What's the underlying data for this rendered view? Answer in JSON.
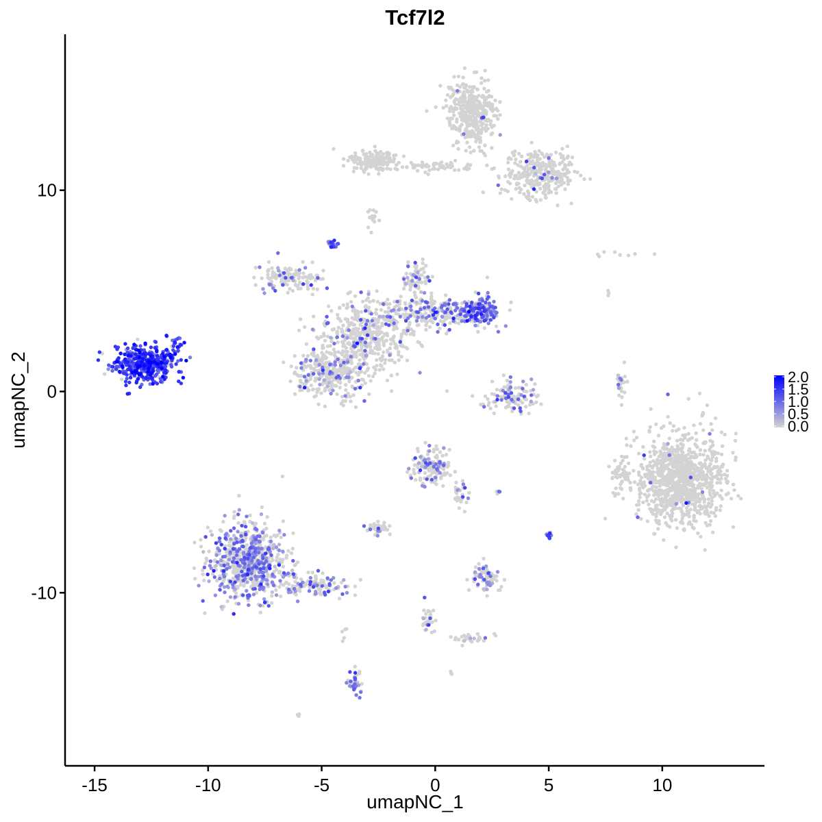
{
  "chart_data": {
    "type": "scatter",
    "title": "Tcf7l2",
    "xlabel": "umapNC_1",
    "ylabel": "umapNC_2",
    "xlim": [
      -16.3,
      14.5
    ],
    "ylim": [
      -18.6,
      17.75
    ],
    "x_ticks": [
      -15,
      -10,
      -5,
      0,
      5,
      10
    ],
    "x_tick_labels": [
      "-15",
      "-10",
      "-5",
      "0",
      "5",
      "10"
    ],
    "y_ticks": [
      -10,
      0,
      10
    ],
    "y_tick_labels": [
      "-10",
      "0",
      "10"
    ],
    "grid": false,
    "legend": {
      "placement": "right",
      "type": "colorbar",
      "range": [
        0,
        2.0
      ],
      "ticks": [
        0.0,
        0.5,
        1.0,
        1.5,
        2.0
      ],
      "tick_labels": [
        "0.0",
        "0.5",
        "1.0",
        "1.5",
        "2.0"
      ],
      "low_color": "#d3d3d3",
      "high_color": "#0000ff"
    },
    "note": "Points generated from approximate clusters (center, spread, count, expressing fraction, mean expression)",
    "clusters": [
      {
        "cx": -12.7,
        "cy": 1.4,
        "sx": 1.0,
        "sy": 0.6,
        "n": 420,
        "frac": 0.95,
        "mean": 1.35
      },
      {
        "cx": -11.4,
        "cy": 2.4,
        "sx": 0.2,
        "sy": 0.3,
        "n": 20,
        "frac": 0.9,
        "mean": 1.2
      },
      {
        "cx": 1.6,
        "cy": 13.8,
        "sx": 0.7,
        "sy": 1.1,
        "n": 380,
        "frac": 0.02,
        "mean": 1.0
      },
      {
        "cx": 4.6,
        "cy": 10.8,
        "sx": 1.0,
        "sy": 0.8,
        "n": 320,
        "frac": 0.02,
        "mean": 1.0
      },
      {
        "cx": -2.7,
        "cy": 11.5,
        "sx": 0.7,
        "sy": 0.35,
        "n": 160,
        "frac": 0.0,
        "mean": 0
      },
      {
        "cx": 0.2,
        "cy": 11.2,
        "sx": 1.1,
        "sy": 0.2,
        "n": 60,
        "frac": 0.0,
        "mean": 0
      },
      {
        "cx": -3.0,
        "cy": 2.8,
        "sx": 1.3,
        "sy": 1.2,
        "n": 480,
        "frac": 0.12,
        "mean": 0.8
      },
      {
        "cx": -6.5,
        "cy": 5.6,
        "sx": 1.0,
        "sy": 0.45,
        "n": 130,
        "frac": 0.15,
        "mean": 0.8
      },
      {
        "cx": -4.6,
        "cy": 0.9,
        "sx": 1.0,
        "sy": 0.8,
        "n": 320,
        "frac": 0.18,
        "mean": 0.8
      },
      {
        "cx": 0.0,
        "cy": 3.9,
        "sx": 1.6,
        "sy": 0.55,
        "n": 260,
        "frac": 0.3,
        "mean": 0.9
      },
      {
        "cx": 2.0,
        "cy": 4.0,
        "sx": 0.5,
        "sy": 0.45,
        "n": 130,
        "frac": 0.7,
        "mean": 1.0
      },
      {
        "cx": -0.8,
        "cy": 5.6,
        "sx": 0.4,
        "sy": 0.6,
        "n": 80,
        "frac": 0.25,
        "mean": 0.8
      },
      {
        "cx": -4.5,
        "cy": 7.3,
        "sx": 0.15,
        "sy": 0.15,
        "n": 22,
        "frac": 0.9,
        "mean": 1.0
      },
      {
        "cx": 3.4,
        "cy": -0.3,
        "sx": 0.8,
        "sy": 0.55,
        "n": 120,
        "frac": 0.2,
        "mean": 0.8
      },
      {
        "cx": 10.8,
        "cy": -4.4,
        "sx": 1.3,
        "sy": 1.5,
        "n": 1000,
        "frac": 0.01,
        "mean": 0.9
      },
      {
        "cx": 8.1,
        "cy": -4.3,
        "sx": 0.25,
        "sy": 0.6,
        "n": 40,
        "frac": 0.0,
        "mean": 0
      },
      {
        "cx": 8.2,
        "cy": 0.4,
        "sx": 0.15,
        "sy": 0.5,
        "n": 30,
        "frac": 0.15,
        "mean": 0.7
      },
      {
        "cx": -8.3,
        "cy": -8.4,
        "sx": 1.1,
        "sy": 1.3,
        "n": 720,
        "frac": 0.4,
        "mean": 0.75
      },
      {
        "cx": -5.3,
        "cy": -9.6,
        "sx": 1.0,
        "sy": 0.4,
        "n": 120,
        "frac": 0.3,
        "mean": 0.8
      },
      {
        "cx": -0.2,
        "cy": -3.8,
        "sx": 0.55,
        "sy": 0.6,
        "n": 150,
        "frac": 0.2,
        "mean": 0.8
      },
      {
        "cx": 1.1,
        "cy": -5.0,
        "sx": 0.25,
        "sy": 0.5,
        "n": 30,
        "frac": 0.2,
        "mean": 0.7
      },
      {
        "cx": -2.5,
        "cy": -6.8,
        "sx": 0.35,
        "sy": 0.2,
        "n": 40,
        "frac": 0.05,
        "mean": 0.7
      },
      {
        "cx": 2.2,
        "cy": -9.2,
        "sx": 0.4,
        "sy": 0.5,
        "n": 80,
        "frac": 0.25,
        "mean": 0.8
      },
      {
        "cx": -0.3,
        "cy": -11.3,
        "sx": 0.2,
        "sy": 0.5,
        "n": 30,
        "frac": 0.2,
        "mean": 0.8
      },
      {
        "cx": 1.8,
        "cy": -12.3,
        "sx": 0.8,
        "sy": 0.2,
        "n": 30,
        "frac": 0.2,
        "mean": 0.8
      },
      {
        "cx": -3.5,
        "cy": -14.5,
        "sx": 0.2,
        "sy": 0.5,
        "n": 40,
        "frac": 0.5,
        "mean": 0.9
      },
      {
        "cx": 5.0,
        "cy": -7.2,
        "sx": 0.1,
        "sy": 0.15,
        "n": 15,
        "frac": 0.8,
        "mean": 1.1
      },
      {
        "cx": 7.8,
        "cy": 6.8,
        "sx": 1.0,
        "sy": 0.15,
        "n": 8,
        "frac": 0.0,
        "mean": 0
      },
      {
        "cx": 7.6,
        "cy": 4.8,
        "sx": 0.1,
        "sy": 0.15,
        "n": 3,
        "frac": 0.0,
        "mean": 0
      },
      {
        "cx": -2.8,
        "cy": 8.7,
        "sx": 0.15,
        "sy": 0.4,
        "n": 15,
        "frac": 0.0,
        "mean": 0
      },
      {
        "cx": -6.0,
        "cy": -16.1,
        "sx": 0.05,
        "sy": 0.05,
        "n": 3,
        "frac": 0.0,
        "mean": 0
      },
      {
        "cx": -4.0,
        "cy": -12.0,
        "sx": 0.1,
        "sy": 0.3,
        "n": 5,
        "frac": 0.0,
        "mean": 0
      },
      {
        "cx": 2.8,
        "cy": -5.0,
        "sx": 0.1,
        "sy": 0.05,
        "n": 5,
        "frac": 0.6,
        "mean": 0.8
      },
      {
        "cx": 0.65,
        "cy": -14.0,
        "sx": 0.05,
        "sy": 0.05,
        "n": 3,
        "frac": 0.3,
        "mean": 0.6
      }
    ]
  }
}
